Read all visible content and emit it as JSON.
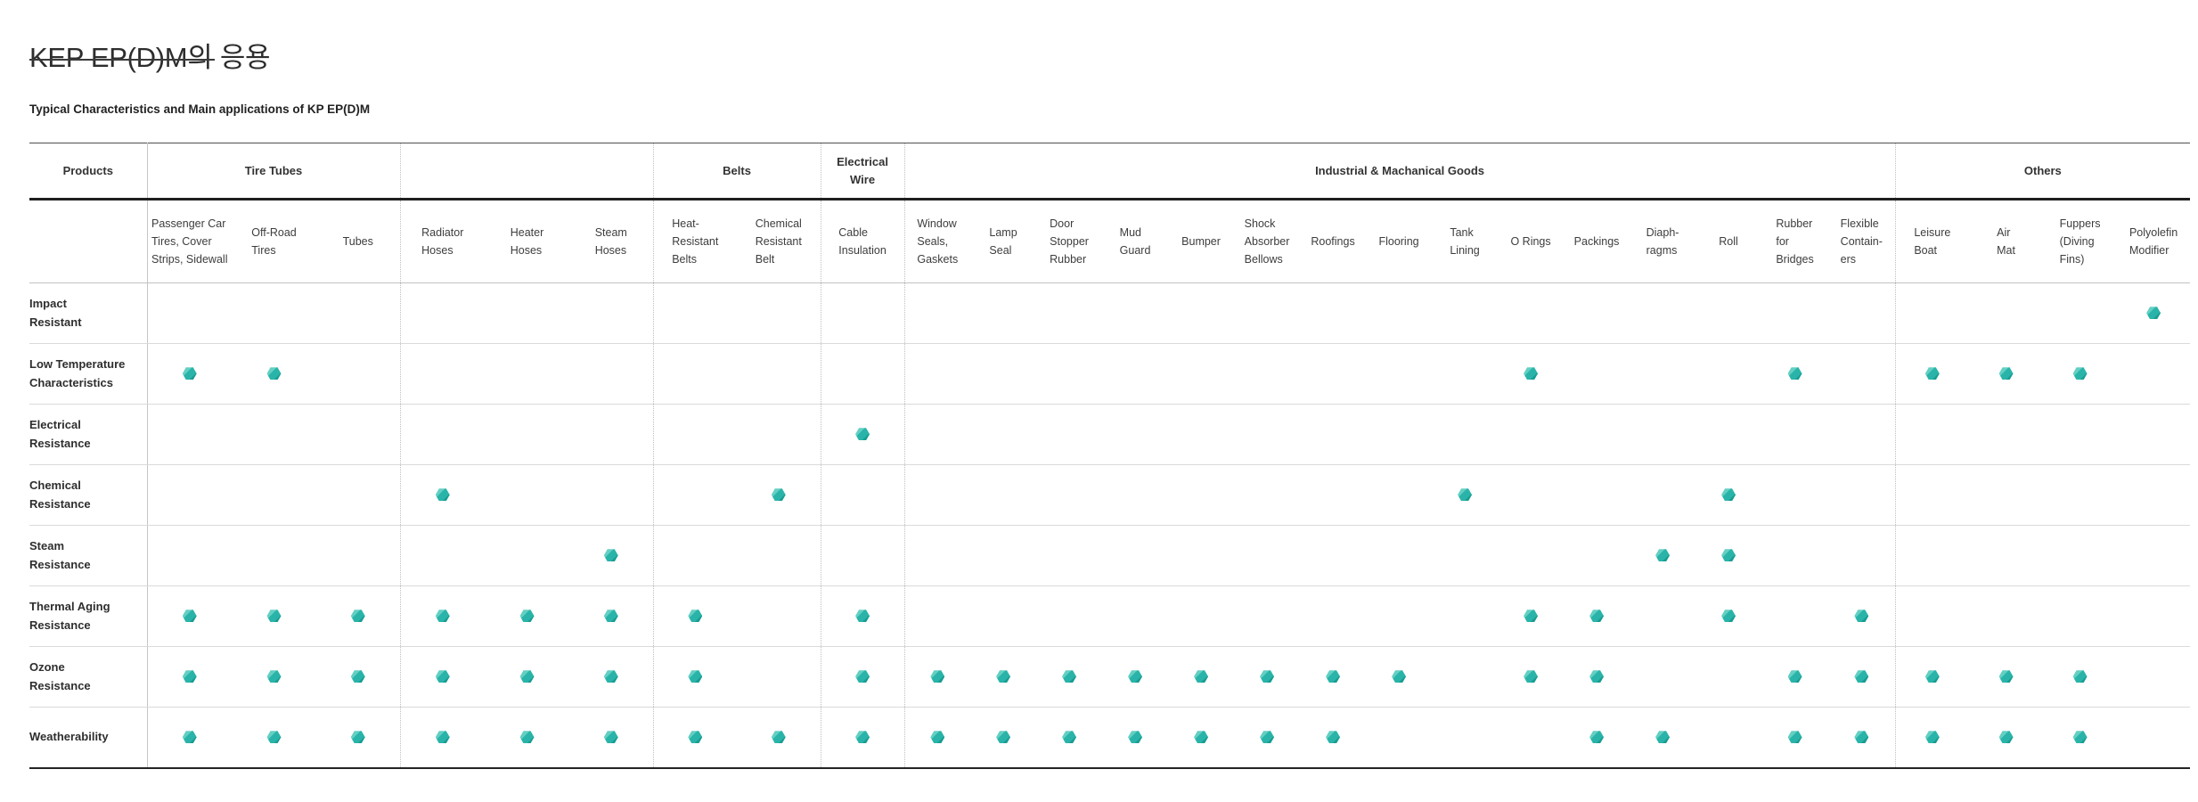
{
  "page": {
    "title": "KEP EP(D)M의 응용",
    "subtitle": "Typical Characteristics and Main applications of KP EP(D)M"
  },
  "table": {
    "corner_header": "Products",
    "groups": [
      {
        "label": "Tire Tubes",
        "span": 3
      },
      {
        "label": "",
        "span": 3
      },
      {
        "label": "Belts",
        "span": 2
      },
      {
        "label": "Electrical Wire",
        "span": 1
      },
      {
        "label": "Industrial & Machanical Goods",
        "span": 15
      },
      {
        "label": "Others",
        "span": 4
      }
    ],
    "columns": [
      [
        "Passenger Car",
        "Tires, Cover",
        "Strips, Sidewall"
      ],
      [
        "Off-Road",
        "Tires"
      ],
      [
        "Tubes"
      ],
      [
        "Radiator",
        "Hoses"
      ],
      [
        "Heater",
        "Hoses"
      ],
      [
        "Steam",
        "Hoses"
      ],
      [
        "Heat-",
        "Resistant",
        "Belts"
      ],
      [
        "Chemical",
        "Resistant",
        "Belt"
      ],
      [
        "Cable",
        "Insulation"
      ],
      [
        "Window",
        "Seals,",
        "Gaskets"
      ],
      [
        "Lamp",
        "Seal"
      ],
      [
        "Door",
        "Stopper",
        "Rubber"
      ],
      [
        "Mud",
        "Guard"
      ],
      [
        "Bumper"
      ],
      [
        "Shock",
        "Absorber",
        "Bellows"
      ],
      [
        "Roofings"
      ],
      [
        "Flooring"
      ],
      [
        "Tank",
        "Lining"
      ],
      [
        "O Rings"
      ],
      [
        "Packings"
      ],
      [
        "Diaph-",
        "ragms"
      ],
      [
        "Roll"
      ],
      [
        "Rubber",
        "for",
        "Bridges"
      ],
      [
        "Flexible",
        "Contain-",
        "ers"
      ],
      [
        "Leisure",
        "Boat"
      ],
      [
        "Air",
        "Mat"
      ],
      [
        "Fuppers",
        "(Diving",
        "Fins)"
      ],
      [
        "Polyolefin",
        "Modifier"
      ]
    ],
    "rows": [
      {
        "label": [
          "Impact",
          "Resistant"
        ],
        "dots": [
          28
        ]
      },
      {
        "label": [
          "Low Temperature",
          "Characteristics"
        ],
        "dots": [
          1,
          2,
          19,
          23,
          25,
          26,
          27
        ]
      },
      {
        "label": [
          "Electrical",
          "Resistance"
        ],
        "dots": [
          9
        ]
      },
      {
        "label": [
          "Chemical",
          "Resistance"
        ],
        "dots": [
          4,
          8,
          18,
          22
        ]
      },
      {
        "label": [
          "Steam",
          "Resistance"
        ],
        "dots": [
          6,
          21,
          22
        ]
      },
      {
        "label": [
          "Thermal Aging",
          "Resistance"
        ],
        "dots": [
          1,
          2,
          3,
          4,
          5,
          6,
          7,
          9,
          19,
          20,
          22,
          24
        ]
      },
      {
        "label": [
          "Ozone",
          "Resistance"
        ],
        "dots": [
          1,
          2,
          3,
          4,
          5,
          6,
          7,
          9,
          10,
          11,
          12,
          13,
          14,
          15,
          16,
          17,
          19,
          20,
          23,
          24,
          25,
          26,
          27
        ]
      },
      {
        "label": [
          "Weatherability"
        ],
        "dots": [
          1,
          2,
          3,
          4,
          5,
          6,
          7,
          8,
          9,
          10,
          11,
          12,
          13,
          14,
          15,
          16,
          20,
          21,
          23,
          24,
          25,
          26,
          27
        ]
      }
    ],
    "dot_meaning": "main application marker",
    "dot_color": "#2ab4a9"
  }
}
